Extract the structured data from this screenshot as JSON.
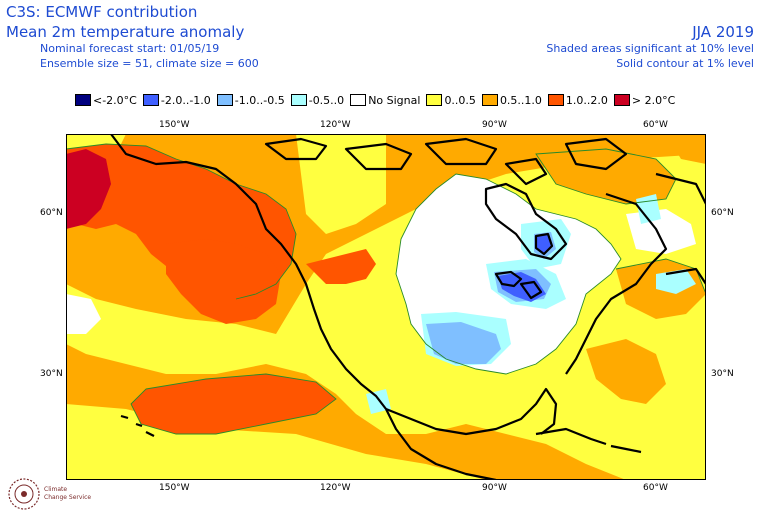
{
  "header": {
    "title": "C3S: ECMWF contribution",
    "subtitle": "Mean 2m temperature anomaly",
    "forecast_start": "Nominal forecast start: 01/05/19",
    "ensemble": "Ensemble size = 51, climate size = 600",
    "season": "JJA 2019",
    "sig_shaded": "Shaded areas significant at 10% level",
    "sig_contour": "Solid contour at 1% level"
  },
  "legend": [
    {
      "label": "<-2.0°C",
      "color": "#00007f"
    },
    {
      "label": "-2.0..-1.0",
      "color": "#3f5fff"
    },
    {
      "label": "-1.0..-0.5",
      "color": "#7fbfff"
    },
    {
      "label": "-0.5..0",
      "color": "#aaffff"
    },
    {
      "label": "No Signal",
      "color": "#ffffff"
    },
    {
      "label": "0..0.5",
      "color": "#ffff40"
    },
    {
      "label": "0.5..1.0",
      "color": "#ffaa00"
    },
    {
      "label": "1.0..2.0",
      "color": "#ff5500"
    },
    {
      "label": "> 2.0°C",
      "color": "#cc0022"
    }
  ],
  "axes": {
    "lon_labels": [
      "150°W",
      "120°W",
      "90°W",
      "60°W"
    ],
    "lat_labels": [
      "60°N",
      "30°N"
    ]
  },
  "logo": {
    "line1": "Climate",
    "line2": "Change Service"
  }
}
